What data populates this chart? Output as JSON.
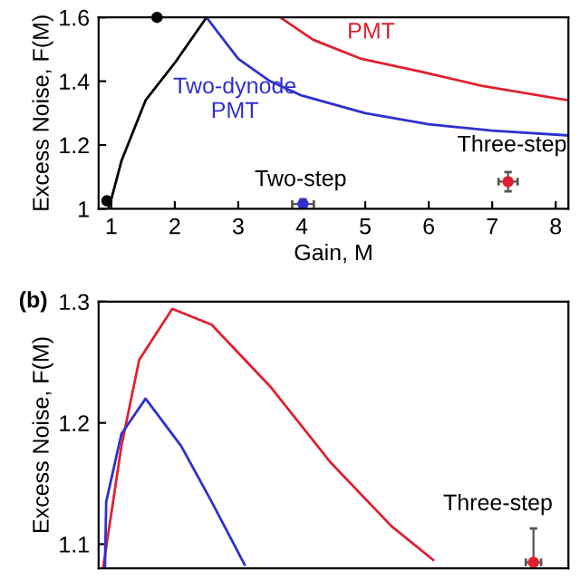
{
  "chart_data": [
    {
      "type": "line",
      "xlabel": "Gain, M",
      "ylabel": "Excess Noise, F(M)",
      "xlim": [
        0.8,
        8.2
      ],
      "ylim": [
        1,
        1.6
      ],
      "xticks": [
        1,
        2,
        3,
        4,
        5,
        6,
        7,
        8
      ],
      "yticks": [
        1,
        {
          "value": 1.2,
          "label": "1.2"
        },
        {
          "value": 1.4,
          "label": "1.4"
        },
        {
          "value": 1.6,
          "label": "1.6"
        }
      ],
      "grid": false,
      "legend": false,
      "series": [
        {
          "color": "#000000",
          "x": [
            0.95,
            1.0,
            1.16,
            1.54,
            2.01,
            2.5
          ],
          "values": [
            1.0,
            1.03,
            1.15,
            1.34,
            1.46,
            1.6
          ]
        },
        {
          "color": "#3030d0",
          "x": [
            2.5,
            3.0,
            3.5,
            4.0,
            5.0,
            6.0,
            7.0,
            8.2
          ],
          "values": [
            1.6,
            1.47,
            1.4,
            1.355,
            1.3,
            1.265,
            1.245,
            1.23
          ]
        },
        {
          "color": "#e02030",
          "x": [
            3.66,
            4.18,
            4.94,
            5.88,
            6.83,
            8.2
          ],
          "values": [
            1.6,
            1.53,
            1.47,
            1.43,
            1.386,
            1.34
          ]
        },
        {
          "type": "scatter",
          "color": "#000000",
          "x": [
            0.93,
            1.72
          ],
          "values": [
            1.025,
            1.6
          ]
        },
        {
          "type": "scatter",
          "color": "#3030d0",
          "x": [
            4.02
          ],
          "values": [
            1.015
          ],
          "errors": [
            0.015
          ],
          "xerrors": [
            0.17
          ]
        },
        {
          "type": "scatter",
          "color": "#e02030",
          "x": [
            7.25
          ],
          "values": [
            1.085
          ],
          "errors": [
            0.03
          ],
          "xerrors": [
            0.15
          ]
        }
      ],
      "annotations": [
        "PMT",
        "Two-dynode\nPMT",
        "Two-step",
        "Three-step"
      ]
    },
    {
      "type": "line",
      "ylabel": "Excess Noise, F(M)",
      "xlim": [
        0.8,
        8.2
      ],
      "ylim": [
        1.08,
        1.3
      ],
      "yticks": [
        {
          "value": 1.1,
          "label": "1.1"
        },
        {
          "value": 1.2,
          "label": "1.2"
        },
        {
          "value": 1.3,
          "label": "1.3"
        }
      ],
      "tick_labels": "y",
      "grid": false,
      "legend": false,
      "series": [
        {
          "color": "#e02030",
          "x": [
            0.87,
            1.16,
            1.44,
            1.96,
            2.58,
            3.52,
            4.46,
            5.41,
            6.07
          ],
          "values": [
            1.08,
            1.181,
            1.252,
            1.294,
            1.281,
            1.229,
            1.167,
            1.115,
            1.087
          ]
        },
        {
          "color": "#3030d0",
          "x": [
            0.9,
            0.92,
            1.16,
            1.54,
            2.1,
            2.58,
            3.1
          ],
          "values": [
            1.08,
            1.135,
            1.191,
            1.22,
            1.181,
            1.135,
            1.083
          ]
        },
        {
          "type": "scatter",
          "color": "#e02030",
          "x": [
            7.65
          ],
          "values": [
            1.085
          ],
          "errors": [
            [
              1.085,
              1.113
            ]
          ],
          "xerrors": [
            0.12
          ]
        }
      ],
      "annotations": [
        "(b)",
        "Three-step"
      ]
    }
  ]
}
